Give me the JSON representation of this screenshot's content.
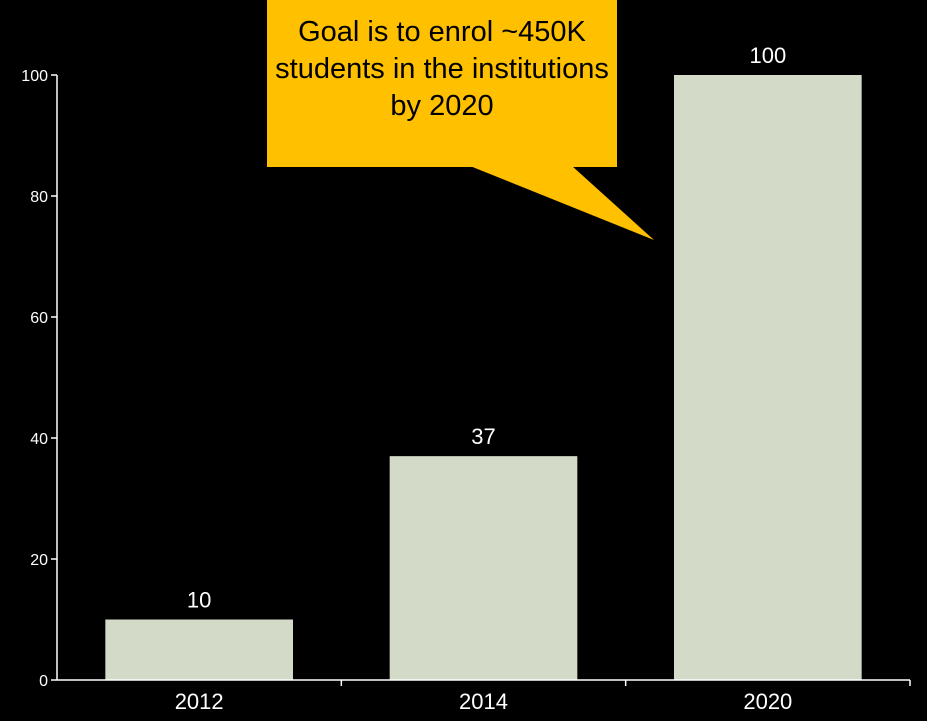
{
  "chart_data": {
    "type": "bar",
    "categories": [
      "2012",
      "2014",
      "2020"
    ],
    "values": [
      10,
      37,
      100
    ],
    "data_labels": [
      "10",
      "37",
      "100"
    ],
    "title": "",
    "xlabel": "",
    "ylabel": "",
    "ylim": [
      0,
      100
    ],
    "yticks": [
      "0",
      "20",
      "40",
      "60",
      "80",
      "100"
    ],
    "grid": false,
    "bar_color": "#d3dbc8",
    "annotation": "Goal is to enrol ~450K students in the institutions by 2020"
  },
  "colors": {
    "background": "#000000",
    "callout": "#ffc000",
    "axis": "#ffffff"
  }
}
